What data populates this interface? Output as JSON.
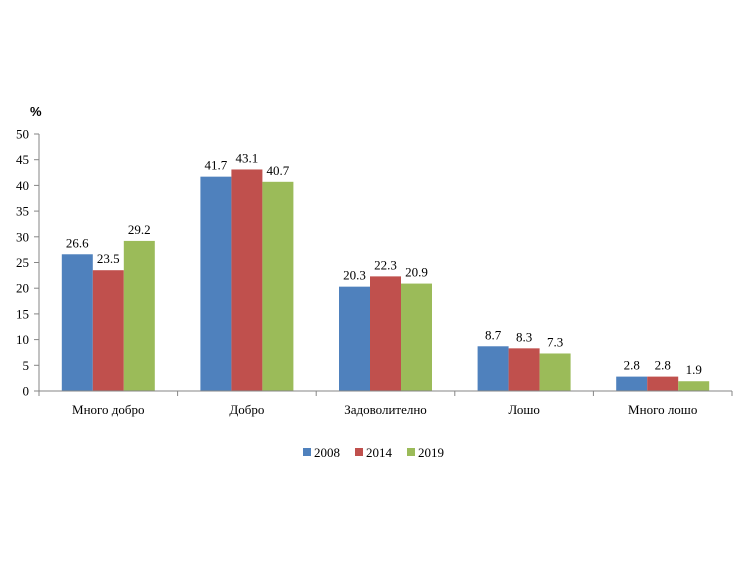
{
  "chart_data": {
    "type": "bar",
    "unit": "%",
    "categories": [
      "Много добро",
      "Добро",
      "Задоволително",
      "Лошо",
      "Много лошо"
    ],
    "series": [
      {
        "name": "2008",
        "color": "#4F81BD",
        "values": [
          26.6,
          41.7,
          20.3,
          8.7,
          2.8
        ]
      },
      {
        "name": "2014",
        "color": "#C0504D",
        "values": [
          23.5,
          43.1,
          22.3,
          8.3,
          2.8
        ]
      },
      {
        "name": "2019",
        "color": "#9BBB59",
        "values": [
          29.2,
          40.7,
          20.9,
          7.3,
          1.9
        ]
      }
    ],
    "ylim": [
      0,
      50
    ],
    "yticks": [
      0,
      5,
      10,
      15,
      20,
      25,
      30,
      35,
      40,
      45,
      50
    ],
    "grid": false,
    "legend_position": "bottom-center"
  }
}
